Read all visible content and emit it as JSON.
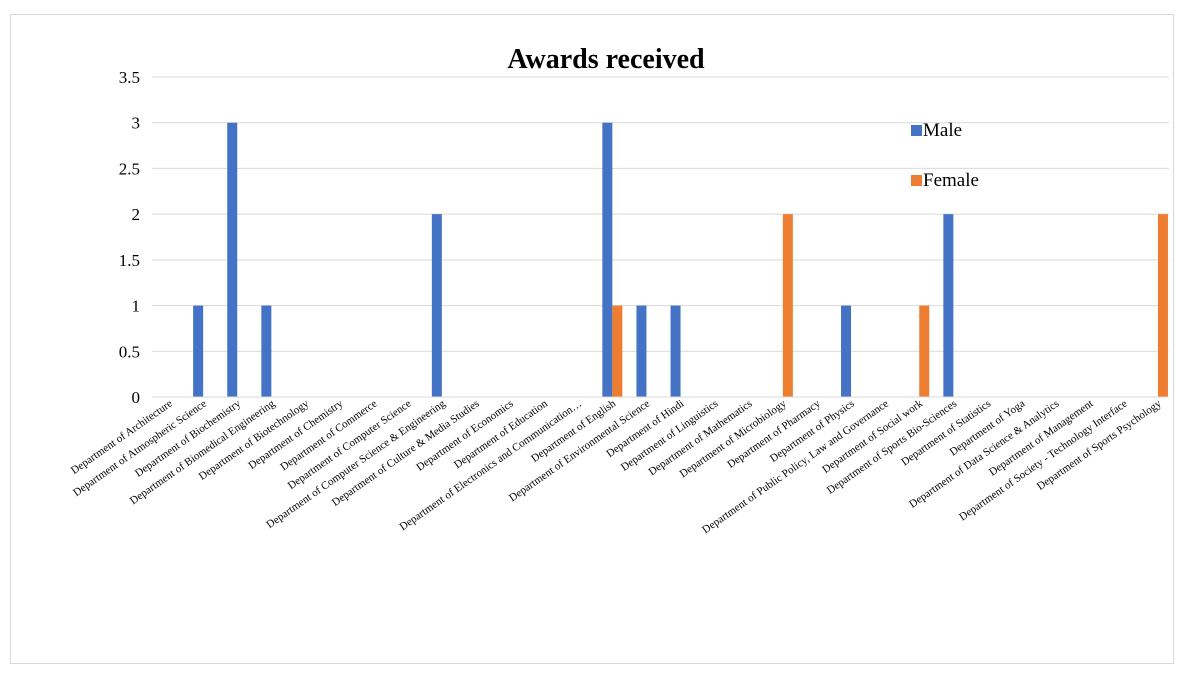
{
  "chart_data": {
    "type": "bar",
    "title": "Awards received",
    "xlabel": "",
    "ylabel": "",
    "ylim": [
      0,
      3.5
    ],
    "yticks": [
      "0",
      "0.5",
      "1",
      "1.5",
      "2",
      "2.5",
      "3",
      "3.5"
    ],
    "grid": true,
    "legend_position": "top-right",
    "categories": [
      "Department of Architecture",
      "Department of Atmospheric Science",
      "Department of Biochemistry",
      "Department of Biomedical Engineering",
      "Department of Biotechnology",
      "Department of Chemistry",
      "Department of Commerce",
      "Department of Computer Science",
      "Department of Computer Science & Engineering",
      "Department of Culture & Media Studies",
      "Department of Economics",
      "Department of Education",
      "Department of Electronics and Communication…",
      "Department of English",
      "Department of Environmental Science",
      "Department of Hindi",
      "Department of Linguistics",
      "Department of Mathematics",
      "Department of Microbiology",
      "Department of Pharmacy",
      "Department of Physics",
      "Department of Public Policy, Law and Governance",
      "Department of Social work",
      "Department of Sports Bio-Sciences",
      "Department of Statistics",
      "Department of Yoga",
      "Department of Data Science & Analytics",
      "Department of Management",
      "Department of Society - Technology Interface",
      "Department of Sports Psychology"
    ],
    "series": [
      {
        "name": "Male",
        "color": "#4472C4",
        "values": [
          0,
          1,
          3,
          1,
          0,
          0,
          0,
          0,
          2,
          0,
          0,
          0,
          0,
          3,
          1,
          1,
          0,
          0,
          0,
          0,
          1,
          0,
          0,
          2,
          0,
          0,
          0,
          0,
          0,
          0
        ]
      },
      {
        "name": "Female",
        "color": "#ED7D31",
        "values": [
          0,
          0,
          0,
          0,
          0,
          0,
          0,
          0,
          0,
          0,
          0,
          0,
          0,
          1,
          0,
          0,
          0,
          0,
          2,
          0,
          0,
          0,
          1,
          0,
          0,
          0,
          0,
          0,
          0,
          2
        ]
      }
    ]
  }
}
